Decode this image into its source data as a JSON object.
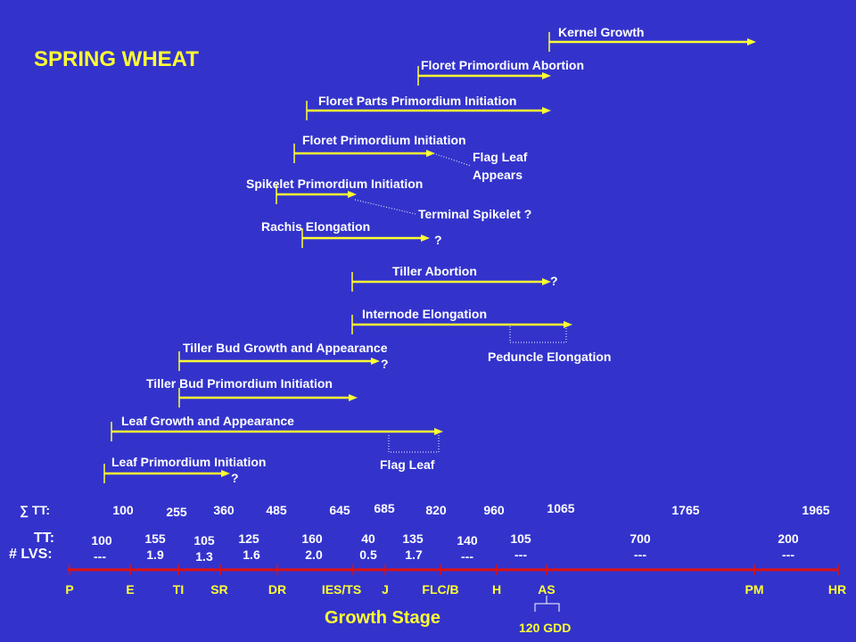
{
  "title": "SPRING WHEAT",
  "colors": {
    "background": "#3333cc",
    "arrow": "#ffff33",
    "axis": "#dd1111",
    "text": "#ffffff",
    "accent": "#ffff33"
  },
  "processes": [
    {
      "label": "Kernel Growth",
      "start_stage": "AS",
      "end_stage": "between AS and PM"
    },
    {
      "label": "Floret Primordium Abortion",
      "start_stage": "FLC/B",
      "end_stage": "AS"
    },
    {
      "label": "Floret Parts Primordium Initiation",
      "start_stage": "IES/TS",
      "end_stage": "AS"
    },
    {
      "label": "Floret Primordium Initiation",
      "start_stage": "IES/TS",
      "end_stage": "FLC/B"
    },
    {
      "label": "Spikelet Primordium Initiation",
      "start_stage": "DR",
      "end_stage": "IES/TS"
    },
    {
      "label": "Rachis Elongation",
      "start_stage": "DR",
      "end_stage": "FLC/B",
      "note": "?"
    },
    {
      "label": "Tiller Abortion",
      "start_stage": "IES/TS",
      "end_stage": "AS",
      "note": "?"
    },
    {
      "label": "Internode Elongation",
      "start_stage": "IES/TS",
      "end_stage": "AS"
    },
    {
      "label": "Tiller Bud Growth and Appearance",
      "start_stage": "E",
      "end_stage": "J",
      "note": "?"
    },
    {
      "label": "Tiller Bud Primordium Initiation",
      "start_stage": "E",
      "end_stage": "IES/TS"
    },
    {
      "label": "Leaf Growth and Appearance",
      "start_stage": "P",
      "end_stage": "FLC/B"
    },
    {
      "label": "Leaf Primordium Initiation",
      "start_stage": "P",
      "end_stage": "DR",
      "note": "?"
    }
  ],
  "callouts": {
    "flag_leaf_appears": [
      "Flag Leaf",
      "Appears"
    ],
    "terminal_spikelet": "Terminal Spikelet ?",
    "peduncle_elongation": "Peduncle Elongation",
    "flag_leaf": "Flag Leaf"
  },
  "question_mark": "?",
  "cumulative_tt": {
    "label": "∑ TT:",
    "values": [
      "100",
      "255",
      "360",
      "485",
      "645",
      "685",
      "820",
      "960",
      "1065",
      "1765",
      "1965"
    ]
  },
  "interval_tt": {
    "label": "TT:",
    "values": [
      "100",
      "155",
      "105",
      "125",
      "160",
      "40",
      "135",
      "140",
      "105",
      "700",
      "200"
    ]
  },
  "leaves": {
    "label": "# LVS:",
    "values": [
      "---",
      "1.9",
      "1.3",
      "1.6",
      "2.0",
      "0.5",
      "1.7",
      "---",
      "---",
      "---",
      "---"
    ]
  },
  "stages": [
    "P",
    "E",
    "TI",
    "SR",
    "DR",
    "IES/TS",
    "J",
    "FLC/B",
    "H",
    "AS",
    "PM",
    "HR"
  ],
  "axis_title": "Growth Stage",
  "gdd_note": "120 GDD"
}
